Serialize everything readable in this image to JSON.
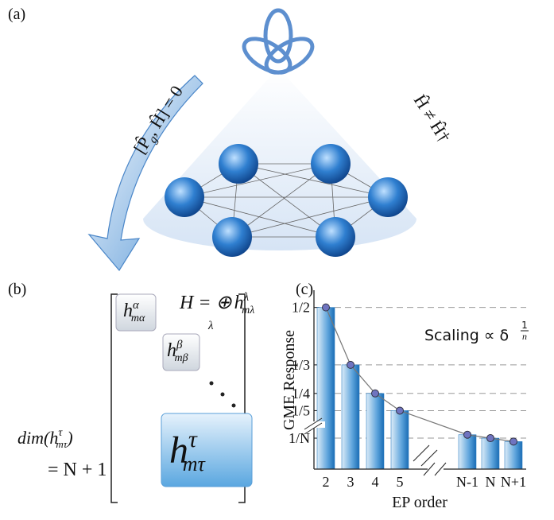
{
  "panel_labels": [
    "(a)",
    "(b)",
    "(c)"
  ],
  "panel_a": {
    "left_arrow_label": {
      "open": "[P̂",
      "sub": "g",
      "close": ", Ĥ] = 0"
    },
    "right_arrow_label": "Ĥ ≠ Ĥ†"
  },
  "panel_b": {
    "blocks": [
      {
        "base": "h",
        "sup": "α",
        "sub": "mα"
      },
      {
        "base": "h",
        "sup": "β",
        "sub": "mβ"
      },
      {
        "base": "h",
        "sup": "τ",
        "sub": "mτ"
      }
    ],
    "sum_formula": {
      "lhs": "H = ⊕",
      "base": "h",
      "sup": "λ",
      "sub": "mλ",
      "under": "λ"
    },
    "dim_label": {
      "open": "dim(h",
      "sup": "τ",
      "sub": "mτ",
      "close": ")",
      "value": "= N + 1"
    }
  },
  "chart_data": {
    "type": "bar",
    "x_label": "EP order",
    "y_label": "GME Response",
    "annotation": {
      "text": "Scaling ∝ δ",
      "exp_num": "1",
      "exp_den": "n"
    },
    "categories": [
      "2",
      "3",
      "4",
      "5",
      "N-1",
      "N",
      "N+1"
    ],
    "values": [
      0.5,
      0.333,
      0.25,
      0.2,
      0.13,
      0.12,
      0.11
    ],
    "color": "#2f7fc4",
    "line_color": "#777777",
    "marker_color": "#6f74c0",
    "ylim": [
      0.03,
      0.55
    ],
    "yticks": [
      {
        "value": 0.5,
        "label": "1/2"
      },
      {
        "value": 0.333,
        "label": "1/3"
      },
      {
        "value": 0.25,
        "label": "1/4"
      },
      {
        "value": 0.2,
        "label": "1/5"
      },
      {
        "value": 0.12,
        "label": "1/N"
      }
    ],
    "grid": true
  }
}
